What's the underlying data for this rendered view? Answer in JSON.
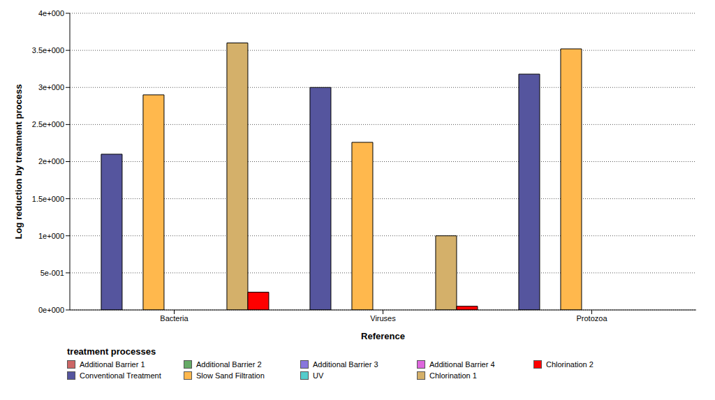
{
  "chart_data": {
    "type": "bar",
    "x_label": "Reference",
    "y_label": "Log reduction by treatment process",
    "legend_title": "treatment processes",
    "legend": "bottom",
    "grid": true,
    "categories": [
      "Bacteria",
      "Viruses",
      "Protozoa"
    ],
    "ylim": [
      0,
      4
    ],
    "yticks": [
      {
        "value": 0,
        "label": "0e+000"
      },
      {
        "value": 0.5,
        "label": "5e-001"
      },
      {
        "value": 1,
        "label": "1e+000"
      },
      {
        "value": 1.5,
        "label": "1.5e+000"
      },
      {
        "value": 2,
        "label": "2e+000"
      },
      {
        "value": 2.5,
        "label": "2.5e+000"
      },
      {
        "value": 3,
        "label": "3e+000"
      },
      {
        "value": 3.5,
        "label": "3.5e+000"
      },
      {
        "value": 4,
        "label": "4e+000"
      }
    ],
    "series": [
      {
        "name": "Additional Barrier 1",
        "color": "#cc6666",
        "values": [
          0,
          0,
          0
        ]
      },
      {
        "name": "Conventional Treatment",
        "color": "#55559e",
        "values": [
          2.1,
          3.0,
          3.18
        ]
      },
      {
        "name": "Additional Barrier 2",
        "color": "#66aa66",
        "values": [
          0,
          0,
          0
        ]
      },
      {
        "name": "Slow Sand Filtration",
        "color": "#ffb84d",
        "values": [
          2.9,
          2.26,
          3.52
        ]
      },
      {
        "name": "Additional Barrier 3",
        "color": "#8877dd",
        "values": [
          0,
          0,
          0
        ]
      },
      {
        "name": "UV",
        "color": "#55cccc",
        "values": [
          0,
          0,
          0
        ]
      },
      {
        "name": "Additional Barrier 4",
        "color": "#dd66dd",
        "values": [
          0,
          0,
          0
        ]
      },
      {
        "name": "Chlorination 1",
        "color": "#d4b06a",
        "values": [
          3.6,
          1.0,
          0
        ]
      },
      {
        "name": "Chlorination 2",
        "color": "#ff0000",
        "values": [
          0.24,
          0.05,
          0
        ]
      }
    ]
  }
}
